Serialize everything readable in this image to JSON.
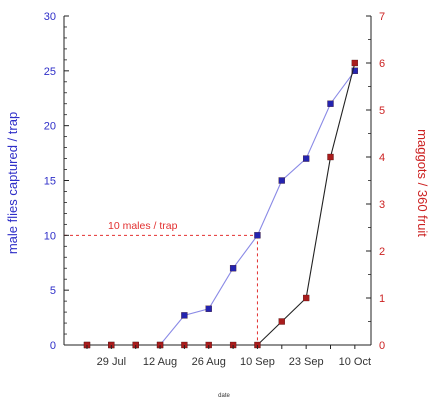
{
  "chart_data": {
    "type": "line",
    "xlabel": "date",
    "ylabel_left": "male flies captured / trap",
    "ylabel_right": "maggots / 360 fruit",
    "left_axis": {
      "ylim": [
        0,
        30
      ],
      "ticks": [
        0,
        5,
        10,
        15,
        20,
        25,
        30
      ],
      "color": "#2e2ec8"
    },
    "right_axis": {
      "ylim": [
        0,
        7
      ],
      "ticks": [
        0,
        1,
        2,
        3,
        4,
        5,
        6,
        7
      ],
      "color": "#cc2222"
    },
    "x_tick_labels": [
      "29 Jul",
      "12 Aug",
      "26 Aug",
      "10 Sep",
      "23 Sep",
      "10 Oct"
    ],
    "x_tick_index": [
      1,
      3,
      5,
      7,
      9,
      11
    ],
    "series": [
      {
        "axis": "left",
        "line_color": "#8a8ae6",
        "marker_color": "#2424b0",
        "x_index": [
          0,
          1,
          2,
          3,
          4,
          5,
          6,
          7,
          8,
          9,
          10,
          11
        ],
        "values": [
          0,
          0,
          0,
          0,
          2.7,
          3.3,
          7,
          10,
          15,
          17,
          22,
          25
        ]
      },
      {
        "axis": "right",
        "line_color": "#222222",
        "marker_color": "#a81c1c",
        "x_index": [
          0,
          1,
          2,
          3,
          4,
          5,
          6,
          7,
          8,
          9,
          10,
          11
        ],
        "values": [
          0,
          0,
          0,
          0,
          0,
          0,
          0,
          0,
          0.5,
          1,
          4,
          6
        ]
      }
    ],
    "annotation": {
      "text": "10 males / trap",
      "y": 10,
      "x_index": 7,
      "color": "#e23030"
    }
  }
}
